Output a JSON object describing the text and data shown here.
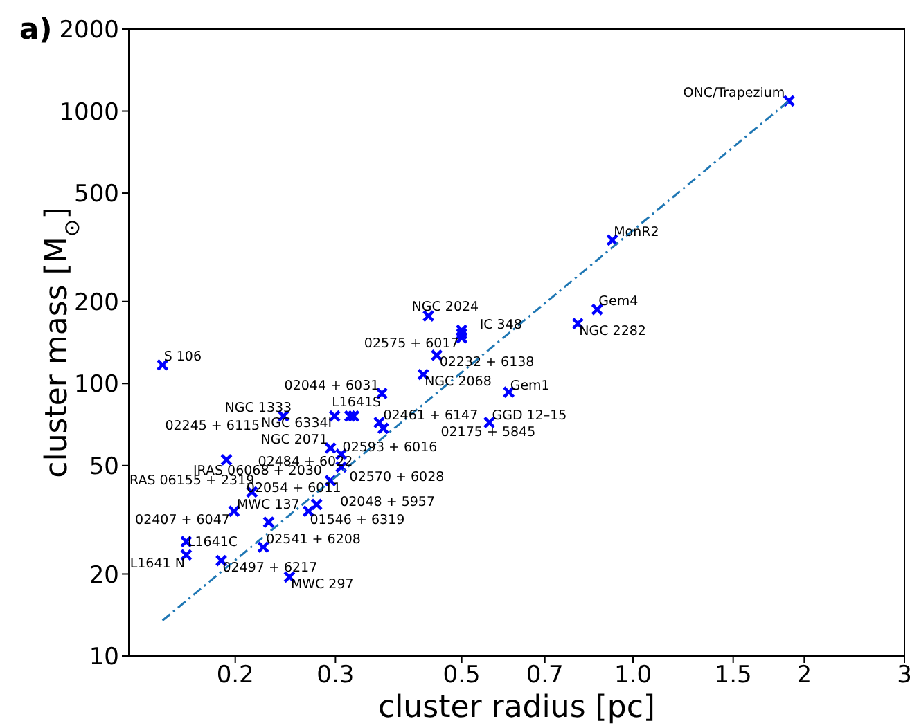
{
  "chart_data": {
    "type": "scatter",
    "title": "a)",
    "xlabel": "cluster radius [pc]",
    "ylabel": "cluster mass [M$_{⊙}$]",
    "log": "xy",
    "xlim": [
      0.13,
      3
    ],
    "ylim": [
      10,
      2000
    ],
    "xticks": [
      0.2,
      0.3,
      0.5,
      0.7,
      {
        "value": 1,
        "label": "1.0"
      },
      1.5,
      2,
      3
    ],
    "yticks": [
      10,
      20,
      50,
      100,
      200,
      500,
      1000,
      2000
    ],
    "series": [
      {
        "color": "#0000ff",
        "marker": "cross",
        "x": [
          1.88,
          0.92,
          0.865,
          0.8,
          0.437,
          0.5,
          0.5,
          0.5,
          0.452,
          0.428,
          0.605,
          0.362,
          0.559,
          0.243,
          0.299,
          0.318,
          0.323,
          0.358,
          0.364,
          0.294,
          0.307,
          0.307,
          0.294,
          0.193,
          0.214,
          0.199,
          0.229,
          0.269,
          0.278,
          0.224,
          0.164,
          0.164,
          0.189,
          0.249,
          0.149
        ],
        "values": [
          1090,
          336,
          187,
          166,
          177,
          157,
          152,
          147,
          127,
          108,
          93,
          92,
          72,
          76,
          76,
          76,
          76,
          72,
          68.5,
          58,
          55,
          49.4,
          44,
          52.5,
          40,
          34,
          31,
          34,
          36,
          25.1,
          26.3,
          23.5,
          22.4,
          19.5,
          117
        ]
      },
      {
        "type": "line",
        "color": "#1f77b4",
        "line_style": "dashdot",
        "marker": "none",
        "x": [
          0.149,
          1.88
        ],
        "values": [
          13.5,
          1090
        ]
      }
    ],
    "annotations": [
      {
        "text": "ONC/Trapezium",
        "x": 1.88,
        "y": 1090
      },
      {
        "text": "MonR2",
        "x": 0.92,
        "y": 336
      },
      {
        "text": "Gem4",
        "x": 0.865,
        "y": 187
      },
      {
        "text": "NGC 2282",
        "x": 0.8,
        "y": 166
      },
      {
        "text": "NGC 2024",
        "x": 0.437,
        "y": 177
      },
      {
        "text": "IC 348",
        "x": 0.5,
        "y": 157
      },
      {
        "text": "02575 + 6017",
        "x": 0.5,
        "y": 147
      },
      {
        "text": "02232 + 6138",
        "x": 0.452,
        "y": 127
      },
      {
        "text": "NGC 2068",
        "x": 0.428,
        "y": 108
      },
      {
        "text": "Gem1",
        "x": 0.605,
        "y": 93
      },
      {
        "text": "02044 + 6031",
        "x": 0.362,
        "y": 92
      },
      {
        "text": "L1641S",
        "x": 0.318,
        "y": 76
      },
      {
        "text": "NGC 1333",
        "x": 0.243,
        "y": 76
      },
      {
        "text": "02245 + 6115",
        "x": 0.243,
        "y": 76
      },
      {
        "text": "NGC 6334I",
        "x": 0.299,
        "y": 76
      },
      {
        "text": "02461 + 6147",
        "x": 0.358,
        "y": 72
      },
      {
        "text": "GGD 12–15",
        "x": 0.559,
        "y": 72
      },
      {
        "text": "02175 + 5845",
        "x": 0.559,
        "y": 72
      },
      {
        "text": "NGC 2071",
        "x": 0.294,
        "y": 58
      },
      {
        "text": "02593 + 6016",
        "x": 0.307,
        "y": 55
      },
      {
        "text": "02484 + 6022",
        "x": 0.307,
        "y": 49.4
      },
      {
        "text": "IRAS 06068 + 2030",
        "x": 0.193,
        "y": 52.5
      },
      {
        "text": "RAS 06155 + 2319",
        "x": 0.193,
        "y": 52.5
      },
      {
        "text": "02570 + 6028",
        "x": 0.307,
        "y": 49.4
      },
      {
        "text": "02054 + 6011",
        "x": 0.214,
        "y": 40
      },
      {
        "text": "MWC 137",
        "x": 0.199,
        "y": 34
      },
      {
        "text": "02407 + 6047",
        "x": 0.199,
        "y": 34
      },
      {
        "text": "02048 + 5957",
        "x": 0.278,
        "y": 36
      },
      {
        "text": "01546 + 6319",
        "x": 0.269,
        "y": 34
      },
      {
        "text": "02541 + 6208",
        "x": 0.224,
        "y": 25.1
      },
      {
        "text": "L1641C",
        "x": 0.164,
        "y": 26.3
      },
      {
        "text": "L1641 N",
        "x": 0.164,
        "y": 23.5
      },
      {
        "text": "02497 + 6217",
        "x": 0.189,
        "y": 22.4
      },
      {
        "text": "MWC 297",
        "x": 0.249,
        "y": 19.5
      },
      {
        "text": "S 106",
        "x": 0.149,
        "y": 117
      }
    ]
  }
}
